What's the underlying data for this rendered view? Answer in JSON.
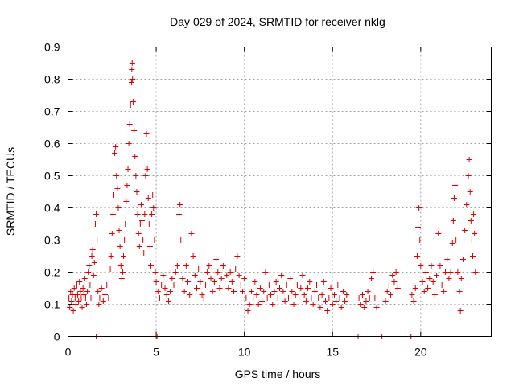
{
  "chart_data": {
    "type": "scatter",
    "title": "Day 029 of 2024, SRMTID for receiver nklg",
    "xlabel": "GPS time / hours",
    "ylabel": "SRMTID / TECUs",
    "xlim": [
      0,
      24
    ],
    "ylim": [
      0,
      0.9
    ],
    "xticks": [
      0,
      5,
      10,
      15,
      20
    ],
    "xtick_labels": [
      "0",
      "5",
      "10",
      "15",
      "20"
    ],
    "yticks": [
      0,
      0.1,
      0.2,
      0.3,
      0.4,
      0.5,
      0.6,
      0.7,
      0.8,
      0.9
    ],
    "ytick_labels": [
      "0",
      "0.1",
      "0.2",
      "0.3",
      "0.4",
      "0.5",
      "0.6",
      "0.7",
      "0.8",
      "0.9"
    ],
    "grid": true,
    "marker": "+",
    "color": "#e00000",
    "series": [
      {
        "name": "SRMTID",
        "points": [
          [
            0.05,
            0.12
          ],
          [
            0.1,
            0.09
          ],
          [
            0.15,
            0.14
          ],
          [
            0.2,
            0.11
          ],
          [
            0.25,
            0.13
          ],
          [
            0.3,
            0.08
          ],
          [
            0.35,
            0.15
          ],
          [
            0.4,
            0.12
          ],
          [
            0.45,
            0.1
          ],
          [
            0.5,
            0.16
          ],
          [
            0.55,
            0.13
          ],
          [
            0.6,
            0.11
          ],
          [
            0.65,
            0.17
          ],
          [
            0.7,
            0.14
          ],
          [
            0.75,
            0.12
          ],
          [
            0.8,
            0.09
          ],
          [
            0.85,
            0.15
          ],
          [
            0.9,
            0.13
          ],
          [
            0.95,
            0.18
          ],
          [
            1.0,
            0.12
          ],
          [
            1.05,
            0.1
          ],
          [
            1.1,
            0.14
          ],
          [
            1.15,
            0.2
          ],
          [
            1.2,
            0.22
          ],
          [
            1.25,
            0.16
          ],
          [
            1.3,
            0.12
          ],
          [
            1.35,
            0.25
          ],
          [
            1.4,
            0.27
          ],
          [
            1.45,
            0.19
          ],
          [
            1.5,
            0.23
          ],
          [
            1.55,
            0.35
          ],
          [
            1.6,
            0.38
          ],
          [
            1.65,
            0.3
          ],
          [
            1.7,
            0.14
          ],
          [
            1.75,
            0.1
          ],
          [
            1.8,
            0.12
          ],
          [
            1.9,
            0.15
          ],
          [
            2.0,
            0.11
          ],
          [
            2.1,
            0.13
          ],
          [
            2.2,
            0.16
          ],
          [
            2.3,
            0.12
          ],
          [
            2.4,
            0.21
          ],
          [
            2.45,
            0.25
          ],
          [
            2.5,
            0.32
          ],
          [
            2.55,
            0.38
          ],
          [
            2.6,
            0.44
          ],
          [
            2.65,
            0.57
          ],
          [
            2.7,
            0.59
          ],
          [
            2.75,
            0.5
          ],
          [
            2.8,
            0.46
          ],
          [
            2.85,
            0.4
          ],
          [
            2.9,
            0.33
          ],
          [
            2.95,
            0.28
          ],
          [
            3.0,
            0.22
          ],
          [
            3.05,
            0.18
          ],
          [
            3.1,
            0.2
          ],
          [
            3.15,
            0.25
          ],
          [
            3.2,
            0.3
          ],
          [
            3.25,
            0.35
          ],
          [
            3.3,
            0.42
          ],
          [
            3.35,
            0.47
          ],
          [
            3.4,
            0.52
          ],
          [
            3.45,
            0.6
          ],
          [
            3.5,
            0.66
          ],
          [
            3.55,
            0.72
          ],
          [
            3.6,
            0.79
          ],
          [
            3.62,
            0.83
          ],
          [
            3.64,
            0.85
          ],
          [
            3.66,
            0.8
          ],
          [
            3.7,
            0.73
          ],
          [
            3.75,
            0.64
          ],
          [
            3.8,
            0.56
          ],
          [
            3.85,
            0.5
          ],
          [
            3.9,
            0.45
          ],
          [
            3.95,
            0.38
          ],
          [
            4.0,
            0.32
          ],
          [
            4.05,
            0.28
          ],
          [
            4.1,
            0.35
          ],
          [
            4.15,
            0.41
          ],
          [
            4.2,
            0.36
          ],
          [
            4.25,
            0.3
          ],
          [
            4.3,
            0.26
          ],
          [
            4.35,
            0.38
          ],
          [
            4.4,
            0.5
          ],
          [
            4.45,
            0.63
          ],
          [
            4.5,
            0.52
          ],
          [
            4.55,
            0.43
          ],
          [
            4.6,
            0.35
          ],
          [
            4.65,
            0.28
          ],
          [
            4.7,
            0.22
          ],
          [
            4.75,
            0.38
          ],
          [
            4.8,
            0.44
          ],
          [
            4.85,
            0.4
          ],
          [
            4.9,
            0.3
          ],
          [
            4.95,
            0.2
          ],
          [
            5.0,
            0.17
          ],
          [
            5.1,
            0.14
          ],
          [
            5.2,
            0.12
          ],
          [
            5.3,
            0.16
          ],
          [
            5.4,
            0.19
          ],
          [
            5.5,
            0.15
          ],
          [
            5.6,
            0.13
          ],
          [
            5.7,
            0.11
          ],
          [
            5.8,
            0.14
          ],
          [
            5.9,
            0.18
          ],
          [
            6.0,
            0.16
          ],
          [
            6.1,
            0.2
          ],
          [
            6.2,
            0.22
          ],
          [
            6.3,
            0.38
          ],
          [
            6.35,
            0.41
          ],
          [
            6.4,
            0.3
          ],
          [
            6.5,
            0.18
          ],
          [
            6.6,
            0.14
          ],
          [
            6.7,
            0.22
          ],
          [
            6.8,
            0.17
          ],
          [
            6.9,
            0.13
          ],
          [
            7.0,
            0.32
          ],
          [
            7.1,
            0.25
          ],
          [
            7.2,
            0.19
          ],
          [
            7.3,
            0.15
          ],
          [
            7.4,
            0.21
          ],
          [
            7.5,
            0.17
          ],
          [
            7.6,
            0.13
          ],
          [
            7.7,
            0.12
          ],
          [
            7.8,
            0.16
          ],
          [
            7.9,
            0.2
          ],
          [
            8.0,
            0.22
          ],
          [
            8.1,
            0.18
          ],
          [
            8.2,
            0.14
          ],
          [
            8.3,
            0.17
          ],
          [
            8.4,
            0.24
          ],
          [
            8.5,
            0.2
          ],
          [
            8.6,
            0.15
          ],
          [
            8.7,
            0.18
          ],
          [
            8.8,
            0.22
          ],
          [
            8.9,
            0.26
          ],
          [
            9.0,
            0.19
          ],
          [
            9.1,
            0.15
          ],
          [
            9.2,
            0.2
          ],
          [
            9.3,
            0.17
          ],
          [
            9.4,
            0.14
          ],
          [
            9.5,
            0.21
          ],
          [
            9.6,
            0.25
          ],
          [
            9.7,
            0.19
          ],
          [
            9.8,
            0.16
          ],
          [
            9.9,
            0.14
          ],
          [
            10.0,
            0.18
          ],
          [
            10.1,
            0.12
          ],
          [
            10.2,
            0.08
          ],
          [
            10.3,
            0.1
          ],
          [
            10.4,
            0.14
          ],
          [
            10.5,
            0.12
          ],
          [
            10.6,
            0.17
          ],
          [
            10.7,
            0.13
          ],
          [
            10.8,
            0.1
          ],
          [
            10.9,
            0.15
          ],
          [
            11.0,
            0.11
          ],
          [
            11.1,
            0.14
          ],
          [
            11.2,
            0.2
          ],
          [
            11.3,
            0.12
          ],
          [
            11.4,
            0.16
          ],
          [
            11.5,
            0.13
          ],
          [
            11.6,
            0.1
          ],
          [
            11.7,
            0.14
          ],
          [
            11.8,
            0.17
          ],
          [
            11.9,
            0.12
          ],
          [
            12.0,
            0.15
          ],
          [
            12.1,
            0.19
          ],
          [
            12.2,
            0.14
          ],
          [
            12.3,
            0.11
          ],
          [
            12.4,
            0.16
          ],
          [
            12.5,
            0.12
          ],
          [
            12.6,
            0.18
          ],
          [
            12.7,
            0.14
          ],
          [
            12.8,
            0.1
          ],
          [
            12.9,
            0.13
          ],
          [
            13.0,
            0.16
          ],
          [
            13.1,
            0.12
          ],
          [
            13.2,
            0.15
          ],
          [
            13.3,
            0.19
          ],
          [
            13.4,
            0.13
          ],
          [
            13.5,
            0.11
          ],
          [
            13.6,
            0.15
          ],
          [
            13.7,
            0.17
          ],
          [
            13.8,
            0.12
          ],
          [
            13.9,
            0.1
          ],
          [
            14.0,
            0.14
          ],
          [
            14.1,
            0.16
          ],
          [
            14.2,
            0.12
          ],
          [
            14.3,
            0.09
          ],
          [
            14.4,
            0.13
          ],
          [
            14.5,
            0.17
          ],
          [
            14.6,
            0.11
          ],
          [
            14.7,
            0.08
          ],
          [
            14.8,
            0.12
          ],
          [
            14.9,
            0.15
          ],
          [
            15.0,
            0.1
          ],
          [
            15.1,
            0.13
          ],
          [
            15.2,
            0.11
          ],
          [
            15.3,
            0.16
          ],
          [
            15.4,
            0.12
          ],
          [
            15.5,
            0.09
          ],
          [
            15.6,
            0.14
          ],
          [
            15.7,
            0.11
          ],
          [
            15.8,
            0.13
          ],
          [
            16.5,
            0.12
          ],
          [
            16.6,
            0.1
          ],
          [
            16.7,
            0.13
          ],
          [
            16.8,
            0.09
          ],
          [
            16.9,
            0.11
          ],
          [
            17.0,
            0.14
          ],
          [
            17.1,
            0.12
          ],
          [
            17.2,
            0.18
          ],
          [
            17.3,
            0.2
          ],
          [
            17.4,
            0.12
          ],
          [
            17.5,
            0.09
          ],
          [
            18.0,
            0.11
          ],
          [
            18.1,
            0.14
          ],
          [
            18.2,
            0.16
          ],
          [
            18.3,
            0.13
          ],
          [
            18.4,
            0.19
          ],
          [
            18.5,
            0.17
          ],
          [
            18.6,
            0.2
          ],
          [
            18.7,
            0.15
          ],
          [
            19.5,
            0.13
          ],
          [
            19.6,
            0.11
          ],
          [
            19.7,
            0.15
          ],
          [
            19.8,
            0.25
          ],
          [
            19.85,
            0.34
          ],
          [
            19.9,
            0.4
          ],
          [
            19.95,
            0.3
          ],
          [
            20.0,
            0.22
          ],
          [
            20.1,
            0.17
          ],
          [
            20.2,
            0.14
          ],
          [
            20.3,
            0.2
          ],
          [
            20.4,
            0.15
          ],
          [
            20.5,
            0.18
          ],
          [
            20.6,
            0.22
          ],
          [
            20.7,
            0.17
          ],
          [
            20.8,
            0.13
          ],
          [
            20.9,
            0.19
          ],
          [
            21.0,
            0.32
          ],
          [
            21.1,
            0.22
          ],
          [
            21.2,
            0.16
          ],
          [
            21.3,
            0.14
          ],
          [
            21.4,
            0.2
          ],
          [
            21.5,
            0.24
          ],
          [
            21.6,
            0.18
          ],
          [
            21.7,
            0.2
          ],
          [
            21.8,
            0.29
          ],
          [
            21.85,
            0.36
          ],
          [
            21.9,
            0.43
          ],
          [
            21.95,
            0.47
          ],
          [
            22.0,
            0.3
          ],
          [
            22.1,
            0.2
          ],
          [
            22.2,
            0.14
          ],
          [
            22.25,
            0.08
          ],
          [
            22.3,
            0.18
          ],
          [
            22.4,
            0.24
          ],
          [
            22.5,
            0.33
          ],
          [
            22.6,
            0.41
          ],
          [
            22.7,
            0.5
          ],
          [
            22.75,
            0.55
          ],
          [
            22.8,
            0.45
          ],
          [
            22.85,
            0.36
          ],
          [
            22.9,
            0.3
          ],
          [
            22.95,
            0.25
          ],
          [
            23.0,
            0.38
          ],
          [
            23.05,
            0.32
          ],
          [
            23.1,
            0.2
          ],
          [
            1.6,
            0.0
          ],
          [
            5.0,
            0.0
          ],
          [
            5.05,
            0.0
          ],
          [
            16.45,
            0.0
          ],
          [
            17.75,
            0.0
          ],
          [
            17.8,
            0.0
          ],
          [
            19.4,
            0.0
          ],
          [
            19.45,
            0.0
          ]
        ]
      }
    ]
  }
}
